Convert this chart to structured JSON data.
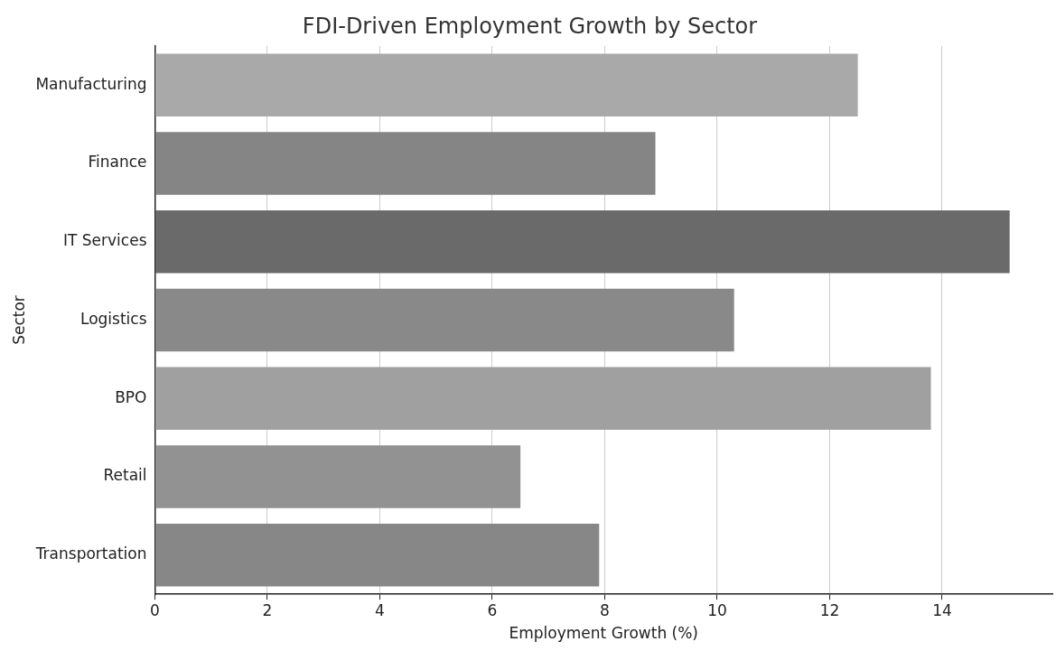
{
  "chart_data": {
    "type": "bar",
    "orientation": "horizontal",
    "title": "FDI-Driven Employment Growth by Sector",
    "xlabel": "Employment Growth (%)",
    "ylabel": "Sector",
    "categories": [
      "Manufacturing",
      "Finance",
      "IT Services",
      "Logistics",
      "BPO",
      "Retail",
      "Transportation"
    ],
    "values": [
      12.5,
      8.9,
      15.2,
      10.3,
      13.8,
      6.5,
      7.9
    ],
    "colors": [
      "#a9a9a9",
      "#858585",
      "#6a6a6a",
      "#898989",
      "#a0a0a0",
      "#929292",
      "#878787"
    ],
    "xlim": [
      0,
      15.96
    ],
    "xticks": [
      0,
      2,
      4,
      6,
      8,
      10,
      12,
      14
    ],
    "grid": "x"
  }
}
